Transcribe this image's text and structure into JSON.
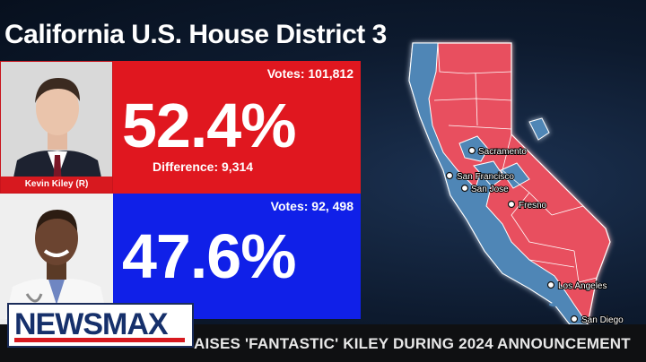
{
  "title": "California U.S. House District 3",
  "candidates": [
    {
      "name": "Kevin Kiley (R)",
      "votes_label": "Votes: 101,812",
      "percent": "52.4%",
      "difference_label": "Difference: 9,314",
      "color": "#e0171f"
    },
    {
      "name": "",
      "votes_label": "Votes: 92, 498",
      "percent": "47.6%",
      "color": "#1020e8"
    }
  ],
  "map": {
    "cities": [
      "Sacramento",
      "San Francisco",
      "San Jose",
      "Fresno",
      "Los Angeles",
      "San Diego"
    ],
    "colors": {
      "red": "#e8505e",
      "blue": "#4f86b6"
    }
  },
  "ticker": {
    "text": "AISES 'FANTASTIC' KILEY DURING 2024 ANNOUNCEMENT"
  },
  "logo": {
    "text": "NEWSMAX"
  }
}
